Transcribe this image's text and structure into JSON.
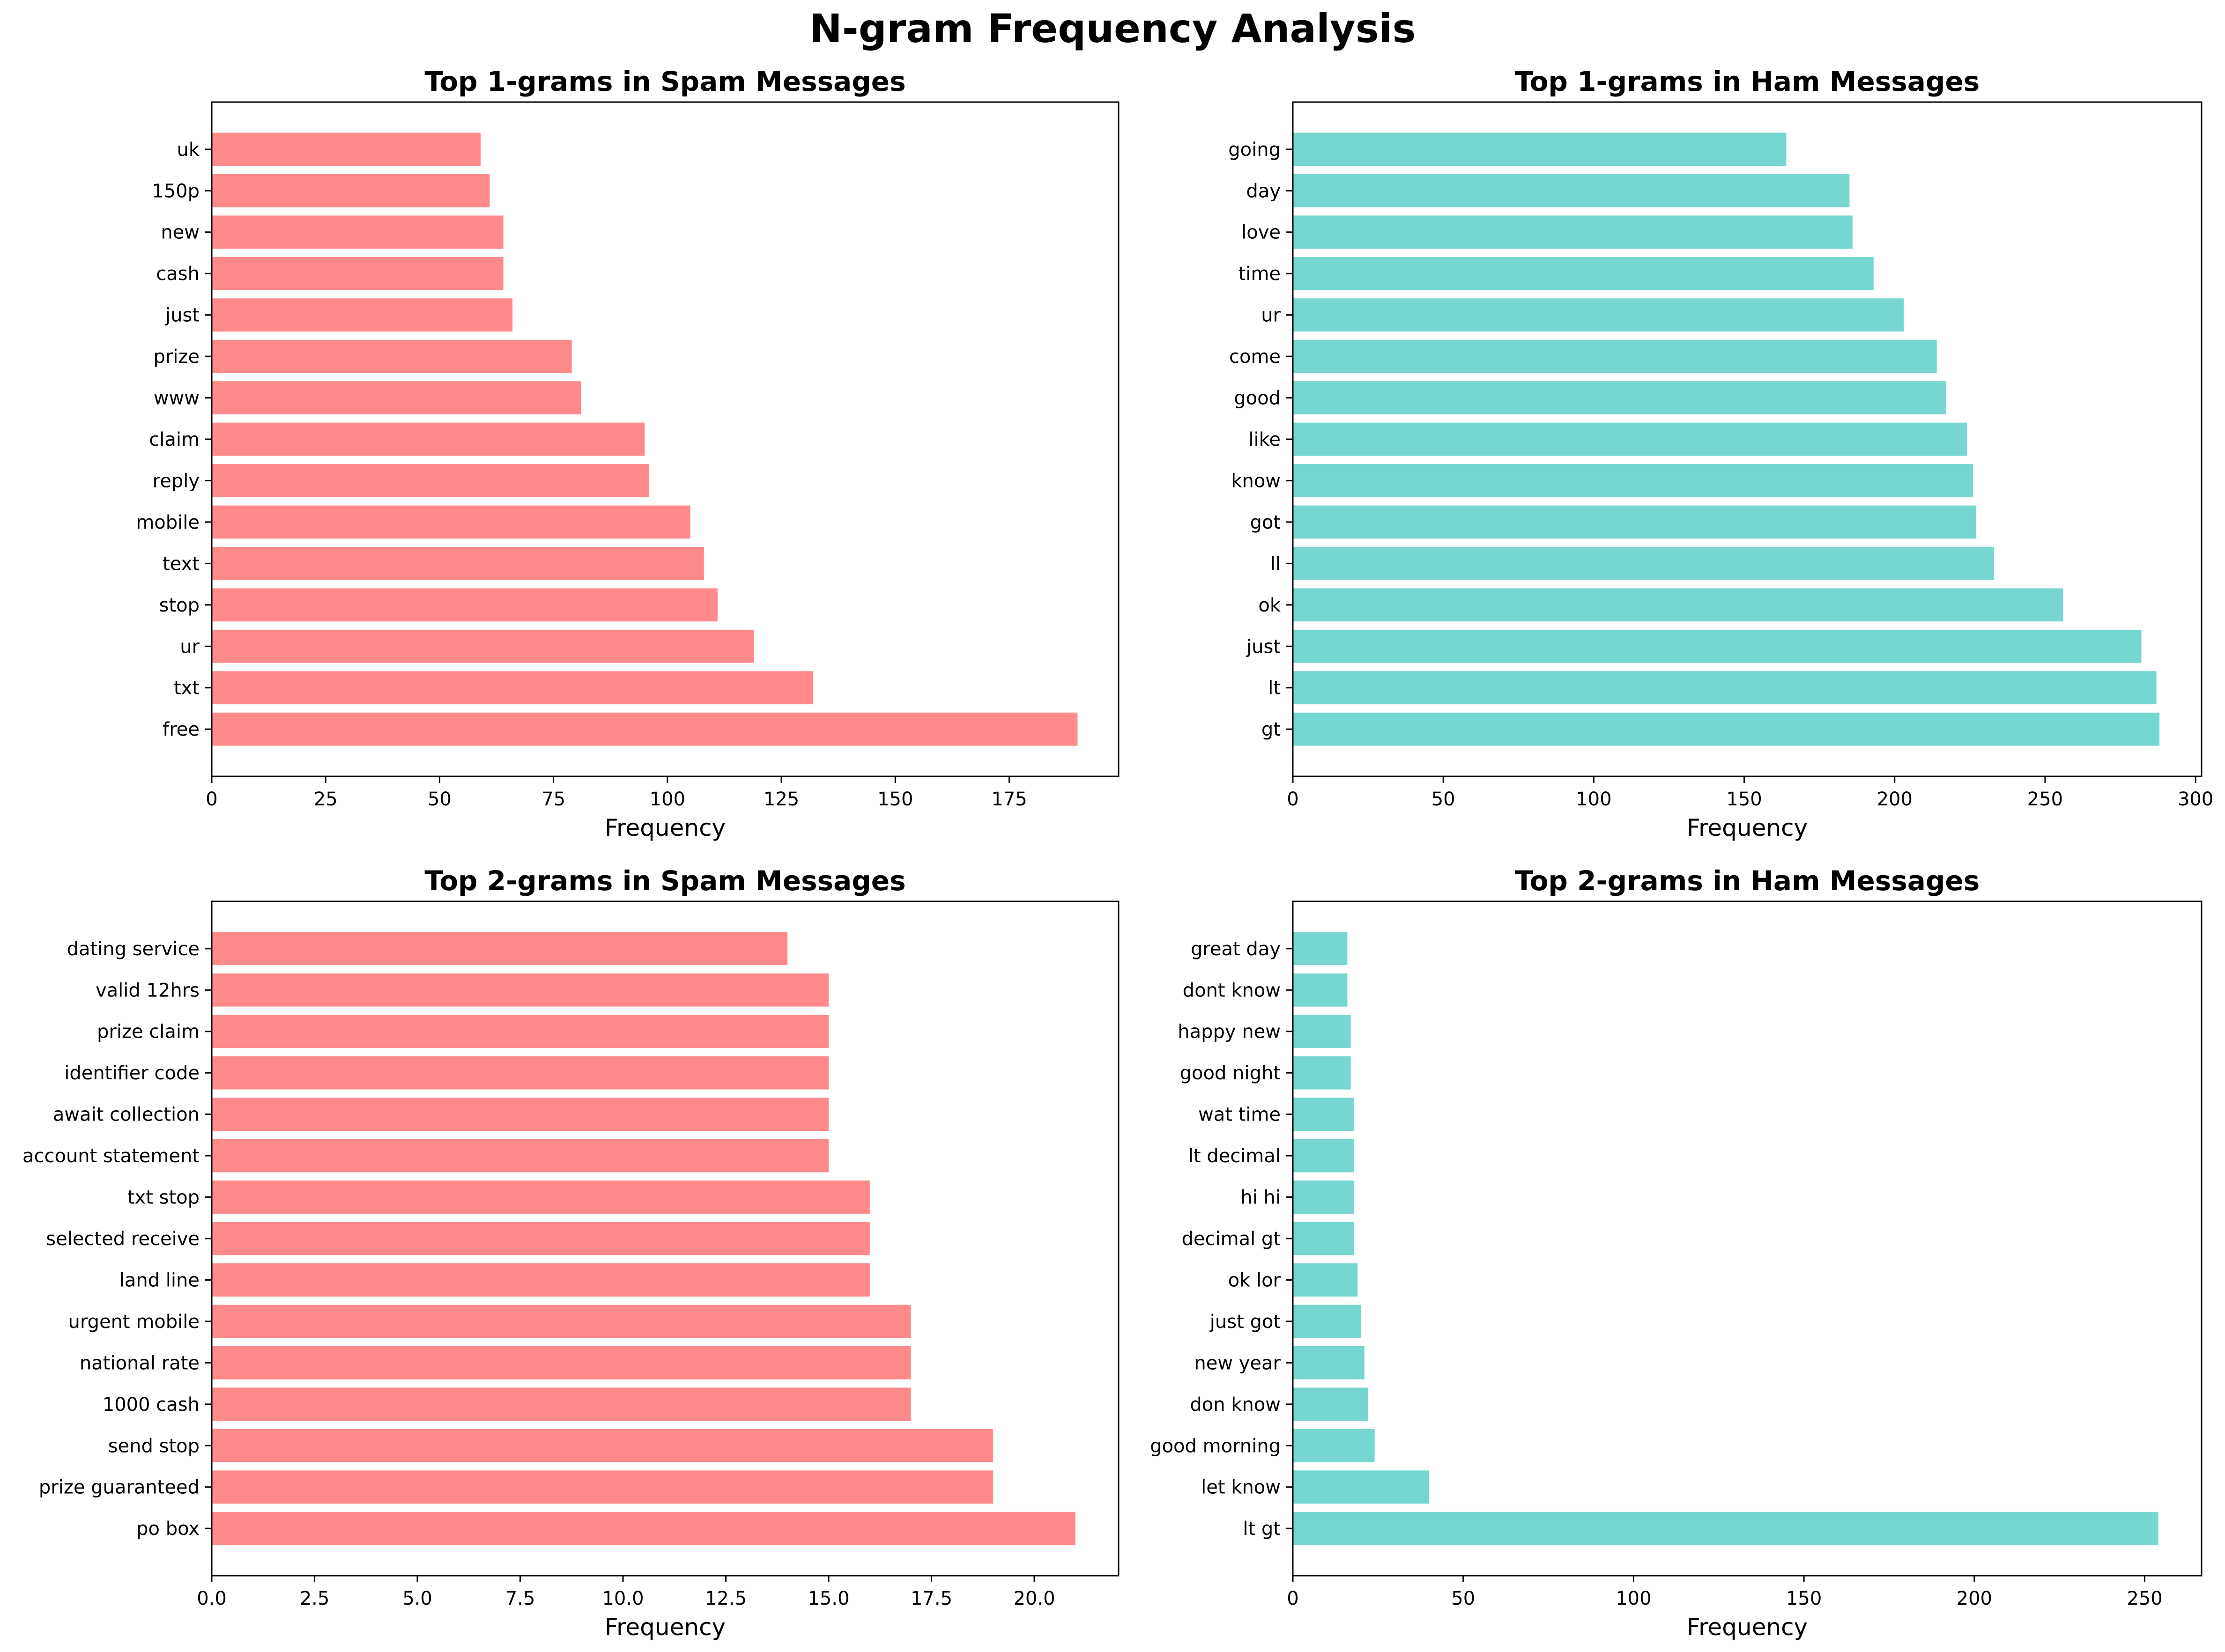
{
  "figure": {
    "title": "N-gram Frequency Analysis"
  },
  "colors": {
    "spam": "#ff8a89",
    "ham": "#75d7cf"
  },
  "chart_data": [
    {
      "type": "bar",
      "orientation": "horizontal",
      "title": "Top 1-grams in Spam Messages",
      "xlabel": "Frequency",
      "ylabel": "",
      "color": "#ff8a89",
      "xlim": [
        0,
        199
      ],
      "xticks": [
        0,
        25,
        50,
        75,
        100,
        125,
        150,
        175
      ],
      "xtick_labels": [
        "0",
        "25",
        "50",
        "75",
        "100",
        "125",
        "150",
        "175"
      ],
      "categories": [
        "free",
        "txt",
        "ur",
        "stop",
        "text",
        "mobile",
        "reply",
        "claim",
        "www",
        "prize",
        "just",
        "cash",
        "new",
        "150p",
        "uk"
      ],
      "values": [
        190,
        132,
        119,
        111,
        108,
        105,
        96,
        95,
        81,
        79,
        66,
        64,
        64,
        61,
        59
      ],
      "grid": false
    },
    {
      "type": "bar",
      "orientation": "horizontal",
      "title": "Top 1-grams in Ham Messages",
      "xlabel": "Frequency",
      "ylabel": "",
      "color": "#75d7cf",
      "xlim": [
        0,
        302
      ],
      "xticks": [
        0,
        50,
        100,
        150,
        200,
        250,
        300
      ],
      "xtick_labels": [
        "0",
        "50",
        "100",
        "150",
        "200",
        "250",
        "300"
      ],
      "categories": [
        "gt",
        "lt",
        "just",
        "ok",
        "ll",
        "got",
        "know",
        "like",
        "good",
        "come",
        "ur",
        "time",
        "love",
        "day",
        "going"
      ],
      "values": [
        288,
        287,
        282,
        256,
        233,
        227,
        226,
        224,
        217,
        214,
        203,
        193,
        186,
        185,
        164
      ],
      "grid": false
    },
    {
      "type": "bar",
      "orientation": "horizontal",
      "title": "Top 2-grams in Spam Messages",
      "xlabel": "Frequency",
      "ylabel": "",
      "color": "#ff8a89",
      "xlim": [
        0,
        22.05
      ],
      "xticks": [
        0,
        2.5,
        5,
        7.5,
        10,
        12.5,
        15,
        17.5,
        20
      ],
      "xtick_labels": [
        "0.0",
        "2.5",
        "5.0",
        "7.5",
        "10.0",
        "12.5",
        "15.0",
        "17.5",
        "20.0"
      ],
      "categories": [
        "po box",
        "prize guaranteed",
        "send stop",
        "1000 cash",
        "national rate",
        "urgent mobile",
        "land line",
        "selected receive",
        "txt stop",
        "account statement",
        "await collection",
        "identifier code",
        "prize claim",
        "valid 12hrs",
        "dating service"
      ],
      "values": [
        21,
        19,
        19,
        17,
        17,
        17,
        16,
        16,
        16,
        15,
        15,
        15,
        15,
        15,
        14
      ],
      "grid": false
    },
    {
      "type": "bar",
      "orientation": "horizontal",
      "title": "Top 2-grams in Ham Messages",
      "xlabel": "Frequency",
      "ylabel": "",
      "color": "#75d7cf",
      "xlim": [
        0,
        266.7
      ],
      "xticks": [
        0,
        50,
        100,
        150,
        200,
        250
      ],
      "xtick_labels": [
        "0",
        "50",
        "100",
        "150",
        "200",
        "250"
      ],
      "categories": [
        "lt gt",
        "let know",
        "good morning",
        "don know",
        "new year",
        "just got",
        "ok lor",
        "decimal gt",
        "hi hi",
        "lt decimal",
        "wat time",
        "good night",
        "happy new",
        "dont know",
        "great day"
      ],
      "values": [
        254,
        40,
        24,
        22,
        21,
        20,
        19,
        18,
        18,
        18,
        18,
        17,
        17,
        16,
        16
      ],
      "grid": false
    }
  ]
}
